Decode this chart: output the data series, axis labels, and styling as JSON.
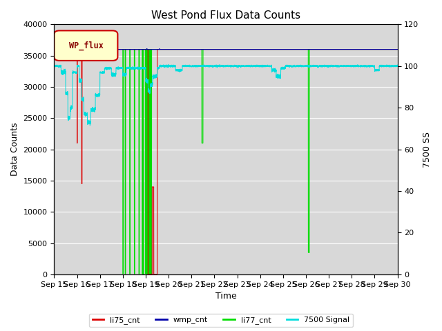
{
  "title": "West Pond Flux Data Counts",
  "xlabel": "Time",
  "ylabel_left": "Data Counts",
  "ylabel_right": "7500 SS",
  "ylim_left": [
    0,
    40000
  ],
  "ylim_right": [
    0,
    120
  ],
  "background_color": "#d8d8d8",
  "legend_label": "WP_flux",
  "legend_box_facecolor": "#ffffcc",
  "legend_box_edgecolor": "#cc0000",
  "x_tick_labels": [
    "Sep 15",
    "Sep 16",
    "Sep 17",
    "Sep 18",
    "Sep 19",
    "Sep 20",
    "Sep 21",
    "Sep 22",
    "Sep 23",
    "Sep 24",
    "Sep 25",
    "Sep 26",
    "Sep 27",
    "Sep 28",
    "Sep 29",
    "Sep 30"
  ],
  "colors": {
    "li75_cnt": "#dd0000",
    "wmp_cnt": "#0000aa",
    "li77_cnt": "#00dd00",
    "signal_7500": "#00dddd"
  },
  "figsize": [
    6.4,
    4.8
  ],
  "dpi": 100
}
